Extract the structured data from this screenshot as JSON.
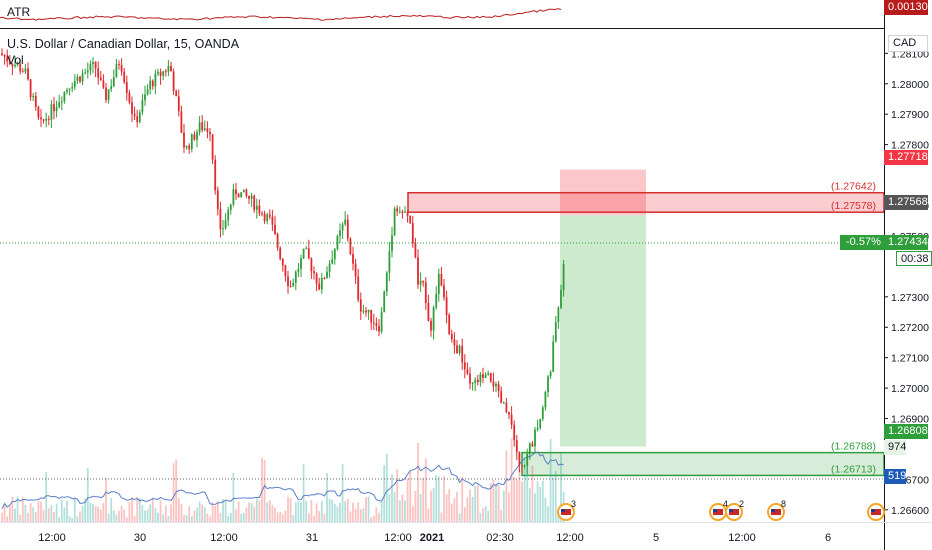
{
  "header": {
    "title": "U.S. Dollar / Canadian Dollar, 15, OANDA",
    "volume_label": "Vol",
    "atr_label": "ATR",
    "atr_value": "0.00130",
    "currency": "CAD"
  },
  "colors": {
    "up": "#26a69a",
    "up_candle": "#2e9e3a",
    "down_candle": "#e0282e",
    "stop_zone": "rgba(242,54,69,0.28)",
    "target_zone": "rgba(76,175,80,0.28)",
    "atr_line": "#b71c1c",
    "vol_ma": "#5b7fc7"
  },
  "chart_data": {
    "type": "candlestick",
    "symbol": "USDCAD",
    "timeframe": "15",
    "y_axis": {
      "ticks": [
        "1.28100",
        "1.28000",
        "1.27900",
        "1.27800",
        "1.27600",
        "1.27500",
        "1.27300",
        "1.27200",
        "1.27100",
        "1.27000",
        "1.26900",
        "1.26700",
        "1.26600"
      ],
      "range": [
        1.2656,
        1.2818
      ]
    },
    "x_axis": {
      "ticks": [
        "12:00",
        "30",
        "12:00",
        "31",
        "12:00",
        "2021",
        "02:30",
        "12:00",
        "5",
        "12:00",
        "6"
      ]
    },
    "price_path": [
      [
        0,
        1.281
      ],
      [
        25,
        1.2804
      ],
      [
        40,
        1.2786
      ],
      [
        70,
        1.28
      ],
      [
        95,
        1.2806
      ],
      [
        105,
        1.2795
      ],
      [
        120,
        1.2808
      ],
      [
        135,
        1.2787
      ],
      [
        150,
        1.28
      ],
      [
        170,
        1.2806
      ],
      [
        185,
        1.2778
      ],
      [
        200,
        1.2786
      ],
      [
        210,
        1.2785
      ],
      [
        220,
        1.275
      ],
      [
        235,
        1.2765
      ],
      [
        250,
        1.2762
      ],
      [
        270,
        1.2755
      ],
      [
        290,
        1.2733
      ],
      [
        305,
        1.2745
      ],
      [
        320,
        1.2733
      ],
      [
        345,
        1.2755
      ],
      [
        360,
        1.2727
      ],
      [
        380,
        1.272
      ],
      [
        395,
        1.276
      ],
      [
        410,
        1.2755
      ],
      [
        418,
        1.2735
      ],
      [
        425,
        1.2732
      ],
      [
        430,
        1.2719
      ],
      [
        440,
        1.2738
      ],
      [
        450,
        1.2715
      ],
      [
        460,
        1.2712
      ],
      [
        470,
        1.27
      ],
      [
        480,
        1.2703
      ],
      [
        492,
        1.2703
      ],
      [
        500,
        1.2696
      ],
      [
        510,
        1.269
      ],
      [
        520,
        1.2672
      ],
      [
        530,
        1.268
      ],
      [
        540,
        1.269
      ],
      [
        550,
        1.2705
      ],
      [
        560,
        1.2732
      ],
      [
        565,
        1.2743
      ]
    ],
    "last_price": "1.27434",
    "change": "-0.57%",
    "countdown": "00:38",
    "price_labels": [
      {
        "value": "1.27718",
        "role": "stop"
      },
      {
        "value": "1.27568",
        "role": "entry"
      },
      {
        "value": "1.26808",
        "role": "target"
      },
      {
        "value": "974",
        "role": "volume"
      },
      {
        "value": "519",
        "role": "volume-ma"
      }
    ],
    "resistance_zone": {
      "top": 1.27642,
      "bottom": 1.27578,
      "labels": [
        "(1.27642)",
        "(1.27578)"
      ]
    },
    "support_zone": {
      "top": 1.26788,
      "bottom": 1.26713,
      "labels": [
        "(1.26788)",
        "(1.26713)"
      ]
    },
    "short_position": {
      "entry": 1.27568,
      "stop": 1.27718,
      "target": 1.26808
    },
    "events": [
      {
        "count": "3"
      },
      {
        "count": "4"
      },
      {
        "count": "2"
      },
      {
        "count": "8"
      }
    ]
  }
}
